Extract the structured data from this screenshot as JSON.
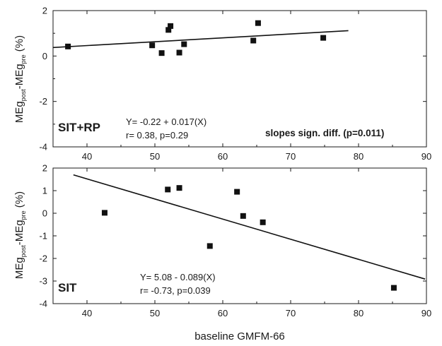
{
  "colors": {
    "axis": "#1a1a1a",
    "marker": "#111111",
    "fit_line": "#111111",
    "background": "#ffffff"
  },
  "chart_data": [
    {
      "type": "scatter",
      "panel_label": "SIT+RP",
      "xlim": [
        35,
        90
      ],
      "ylim": [
        -4,
        2
      ],
      "xticks": [
        40,
        50,
        60,
        70,
        80,
        90
      ],
      "yticks": [
        -4,
        -2,
        0,
        2
      ],
      "xtick_labels": [
        "40",
        "50",
        "60",
        "70",
        "80",
        "90"
      ],
      "ytick_labels": [
        "-4",
        "-2",
        "0",
        "2"
      ],
      "ylabel": {
        "part1": "MEg",
        "sub1": "post",
        "part2": "-MEg",
        "sub2": "pre",
        "part3": " (%)"
      },
      "points": [
        {
          "x": 37.2,
          "y": 0.42
        },
        {
          "x": 49.6,
          "y": 0.47
        },
        {
          "x": 51.0,
          "y": 0.13
        },
        {
          "x": 52.0,
          "y": 1.15
        },
        {
          "x": 52.3,
          "y": 1.32
        },
        {
          "x": 53.6,
          "y": 0.15
        },
        {
          "x": 54.3,
          "y": 0.52
        },
        {
          "x": 64.5,
          "y": 0.68
        },
        {
          "x": 65.2,
          "y": 1.45
        },
        {
          "x": 74.8,
          "y": 0.8
        }
      ],
      "regression": {
        "intercept": -0.22,
        "slope": 0.017,
        "x_range": [
          35,
          78.5
        ]
      },
      "equation": "Y= -0.22 + 0.017(X)",
      "stats": "r= 0.38, p=0.29",
      "note": "slopes sign. diff. (p=0.011)"
    },
    {
      "type": "scatter",
      "panel_label": "SIT",
      "xlim": [
        35,
        90
      ],
      "ylim": [
        -4,
        2
      ],
      "xticks": [
        40,
        50,
        60,
        70,
        80,
        90
      ],
      "yticks": [
        -4,
        -3,
        -2,
        -1,
        0,
        1,
        2
      ],
      "xtick_labels": [
        "40",
        "50",
        "60",
        "70",
        "80",
        "90"
      ],
      "ytick_labels": [
        "-4",
        "-3",
        "-2",
        "-1",
        "0",
        "1",
        "2"
      ],
      "ylabel": {
        "part1": "MEg",
        "sub1": "post",
        "part2": "-MEg",
        "sub2": "pre",
        "part3": " (%)"
      },
      "points": [
        {
          "x": 42.6,
          "y": 0.02
        },
        {
          "x": 51.9,
          "y": 1.05
        },
        {
          "x": 53.6,
          "y": 1.12
        },
        {
          "x": 58.1,
          "y": -1.45
        },
        {
          "x": 62.1,
          "y": 0.95
        },
        {
          "x": 63.0,
          "y": -0.12
        },
        {
          "x": 65.9,
          "y": -0.4
        },
        {
          "x": 85.2,
          "y": -3.3
        }
      ],
      "regression": {
        "intercept": 5.08,
        "slope": -0.089,
        "x_range": [
          38.0,
          89.8
        ]
      },
      "equation": "Y= 5.08 - 0.089(X)",
      "stats": "r= -0.73, p=0.039"
    }
  ],
  "xlabel": "baseline GMFM-66"
}
